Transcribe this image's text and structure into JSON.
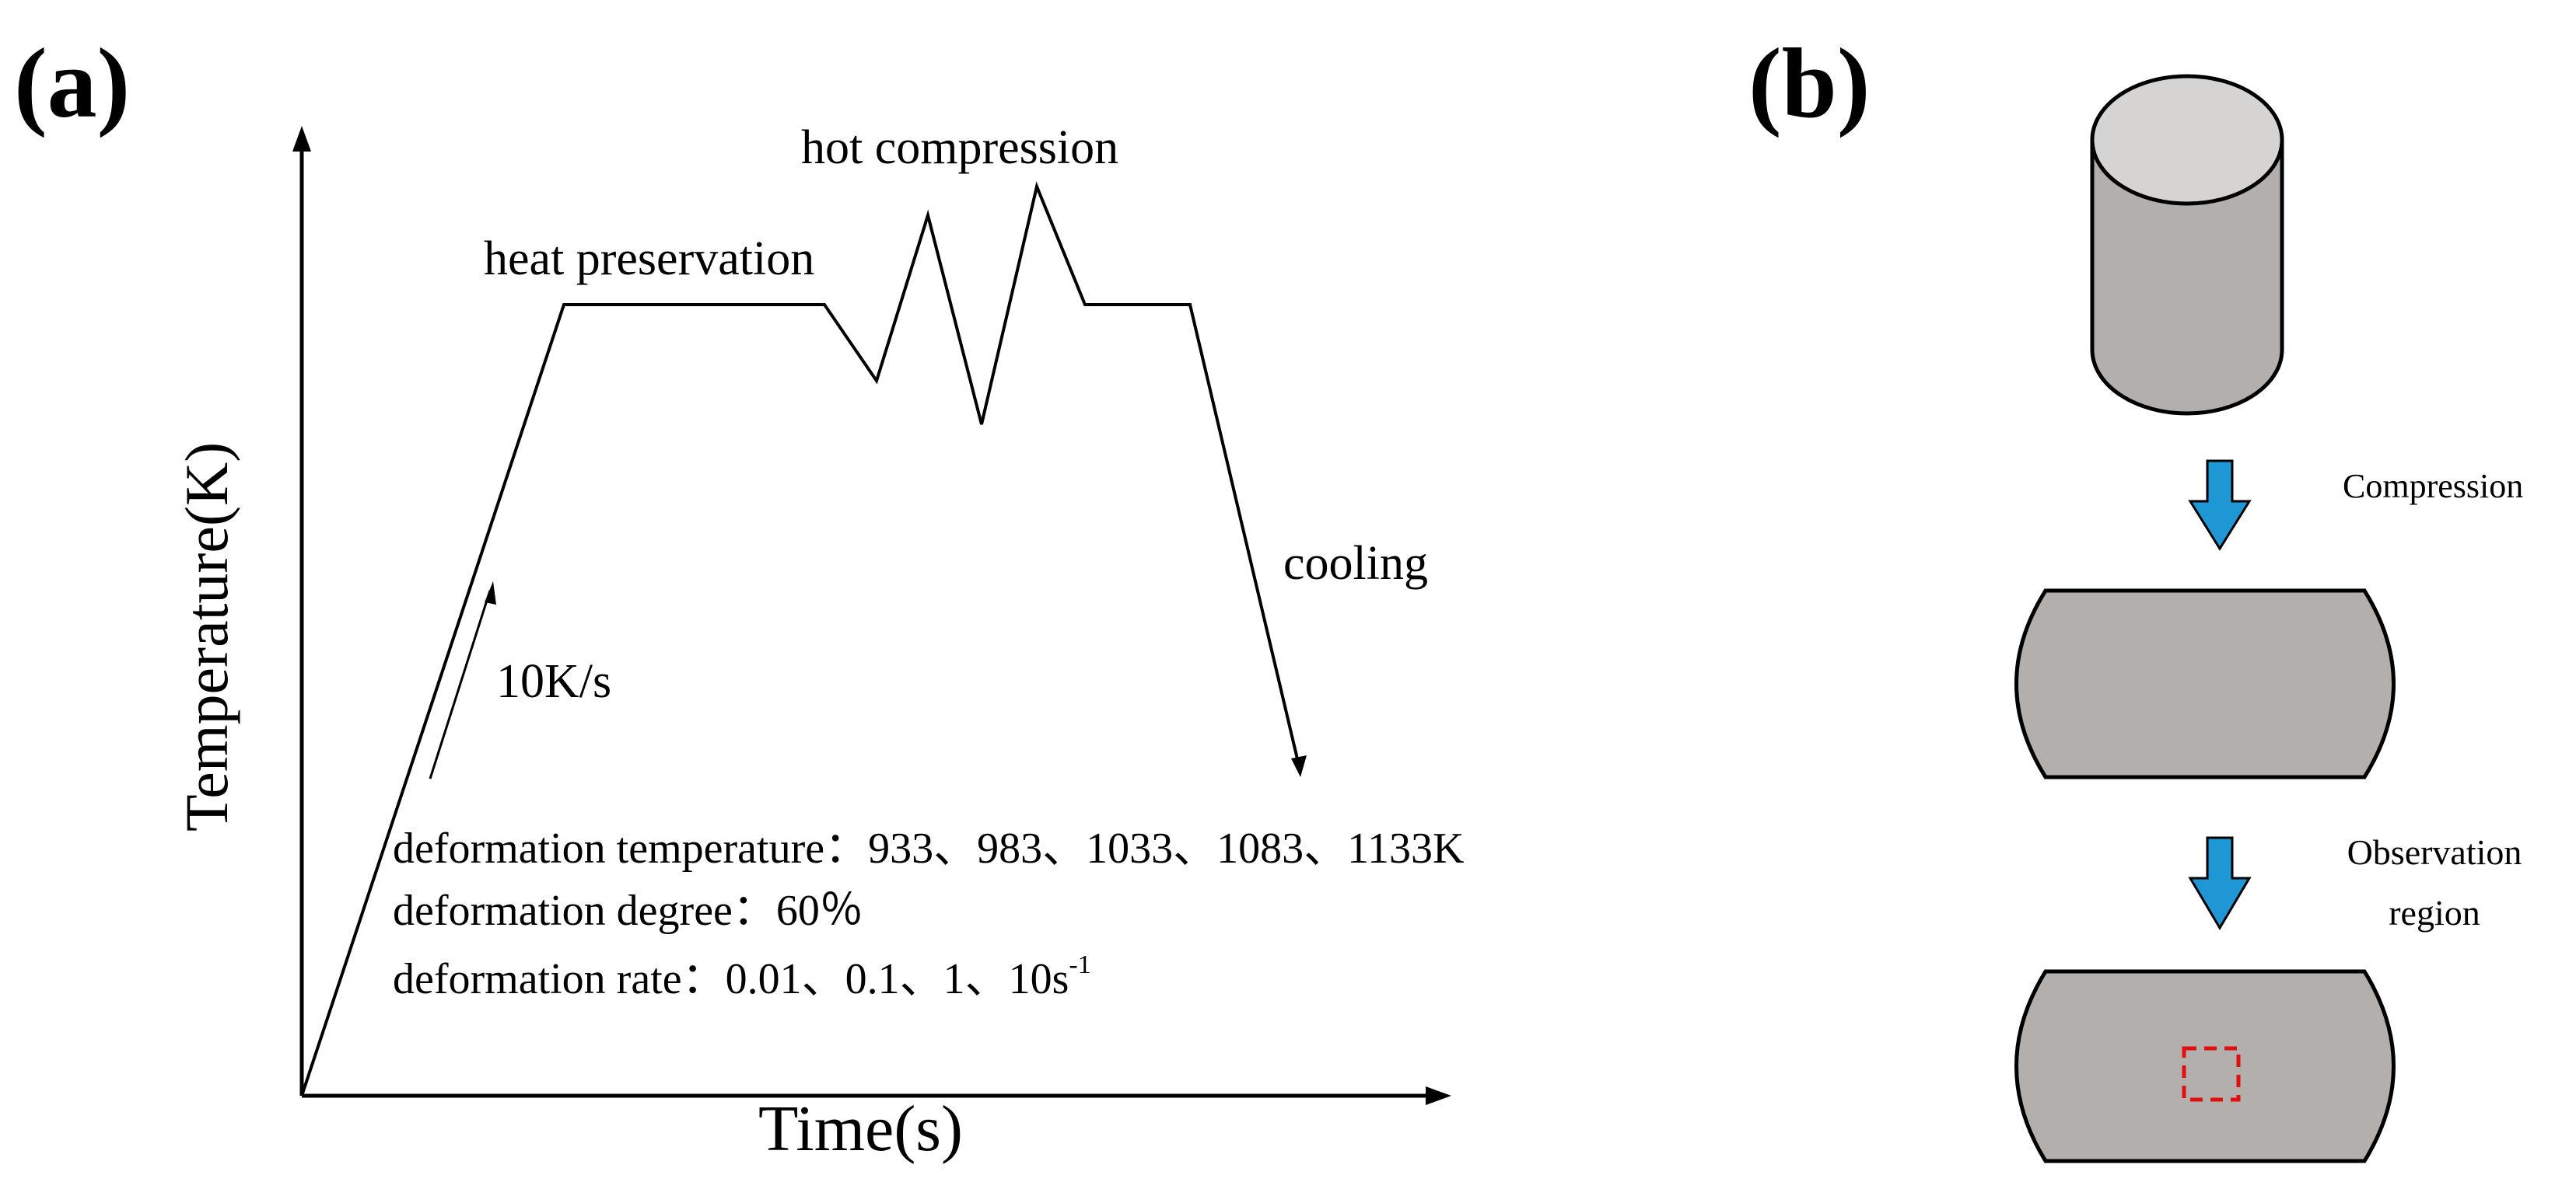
{
  "panel_a": {
    "label": "(a)",
    "y_axis_label": "Temperature(K)",
    "x_axis_label": "Time(s)",
    "annotations": {
      "heat_preservation": "heat preservation",
      "hot_compression": "hot compression",
      "cooling": "cooling",
      "heating_rate": "10K/s"
    },
    "conditions": {
      "temperature": "deformation temperature：933、983、1033、1083、1133K",
      "degree": "deformation degree：60％",
      "rate_main": "deformation rate：0.01、0.1、1、10s",
      "rate_superscript": "-1"
    }
  },
  "panel_b": {
    "label": "(b)",
    "step1": "Compression",
    "step2_line1": "Observation",
    "step2_line2": "region",
    "colors": {
      "specimen_fill": "#b3afac",
      "specimen_top": "#d6d4d3",
      "arrow_fill": "#1f97d4",
      "region_outline": "#e01010"
    }
  }
}
